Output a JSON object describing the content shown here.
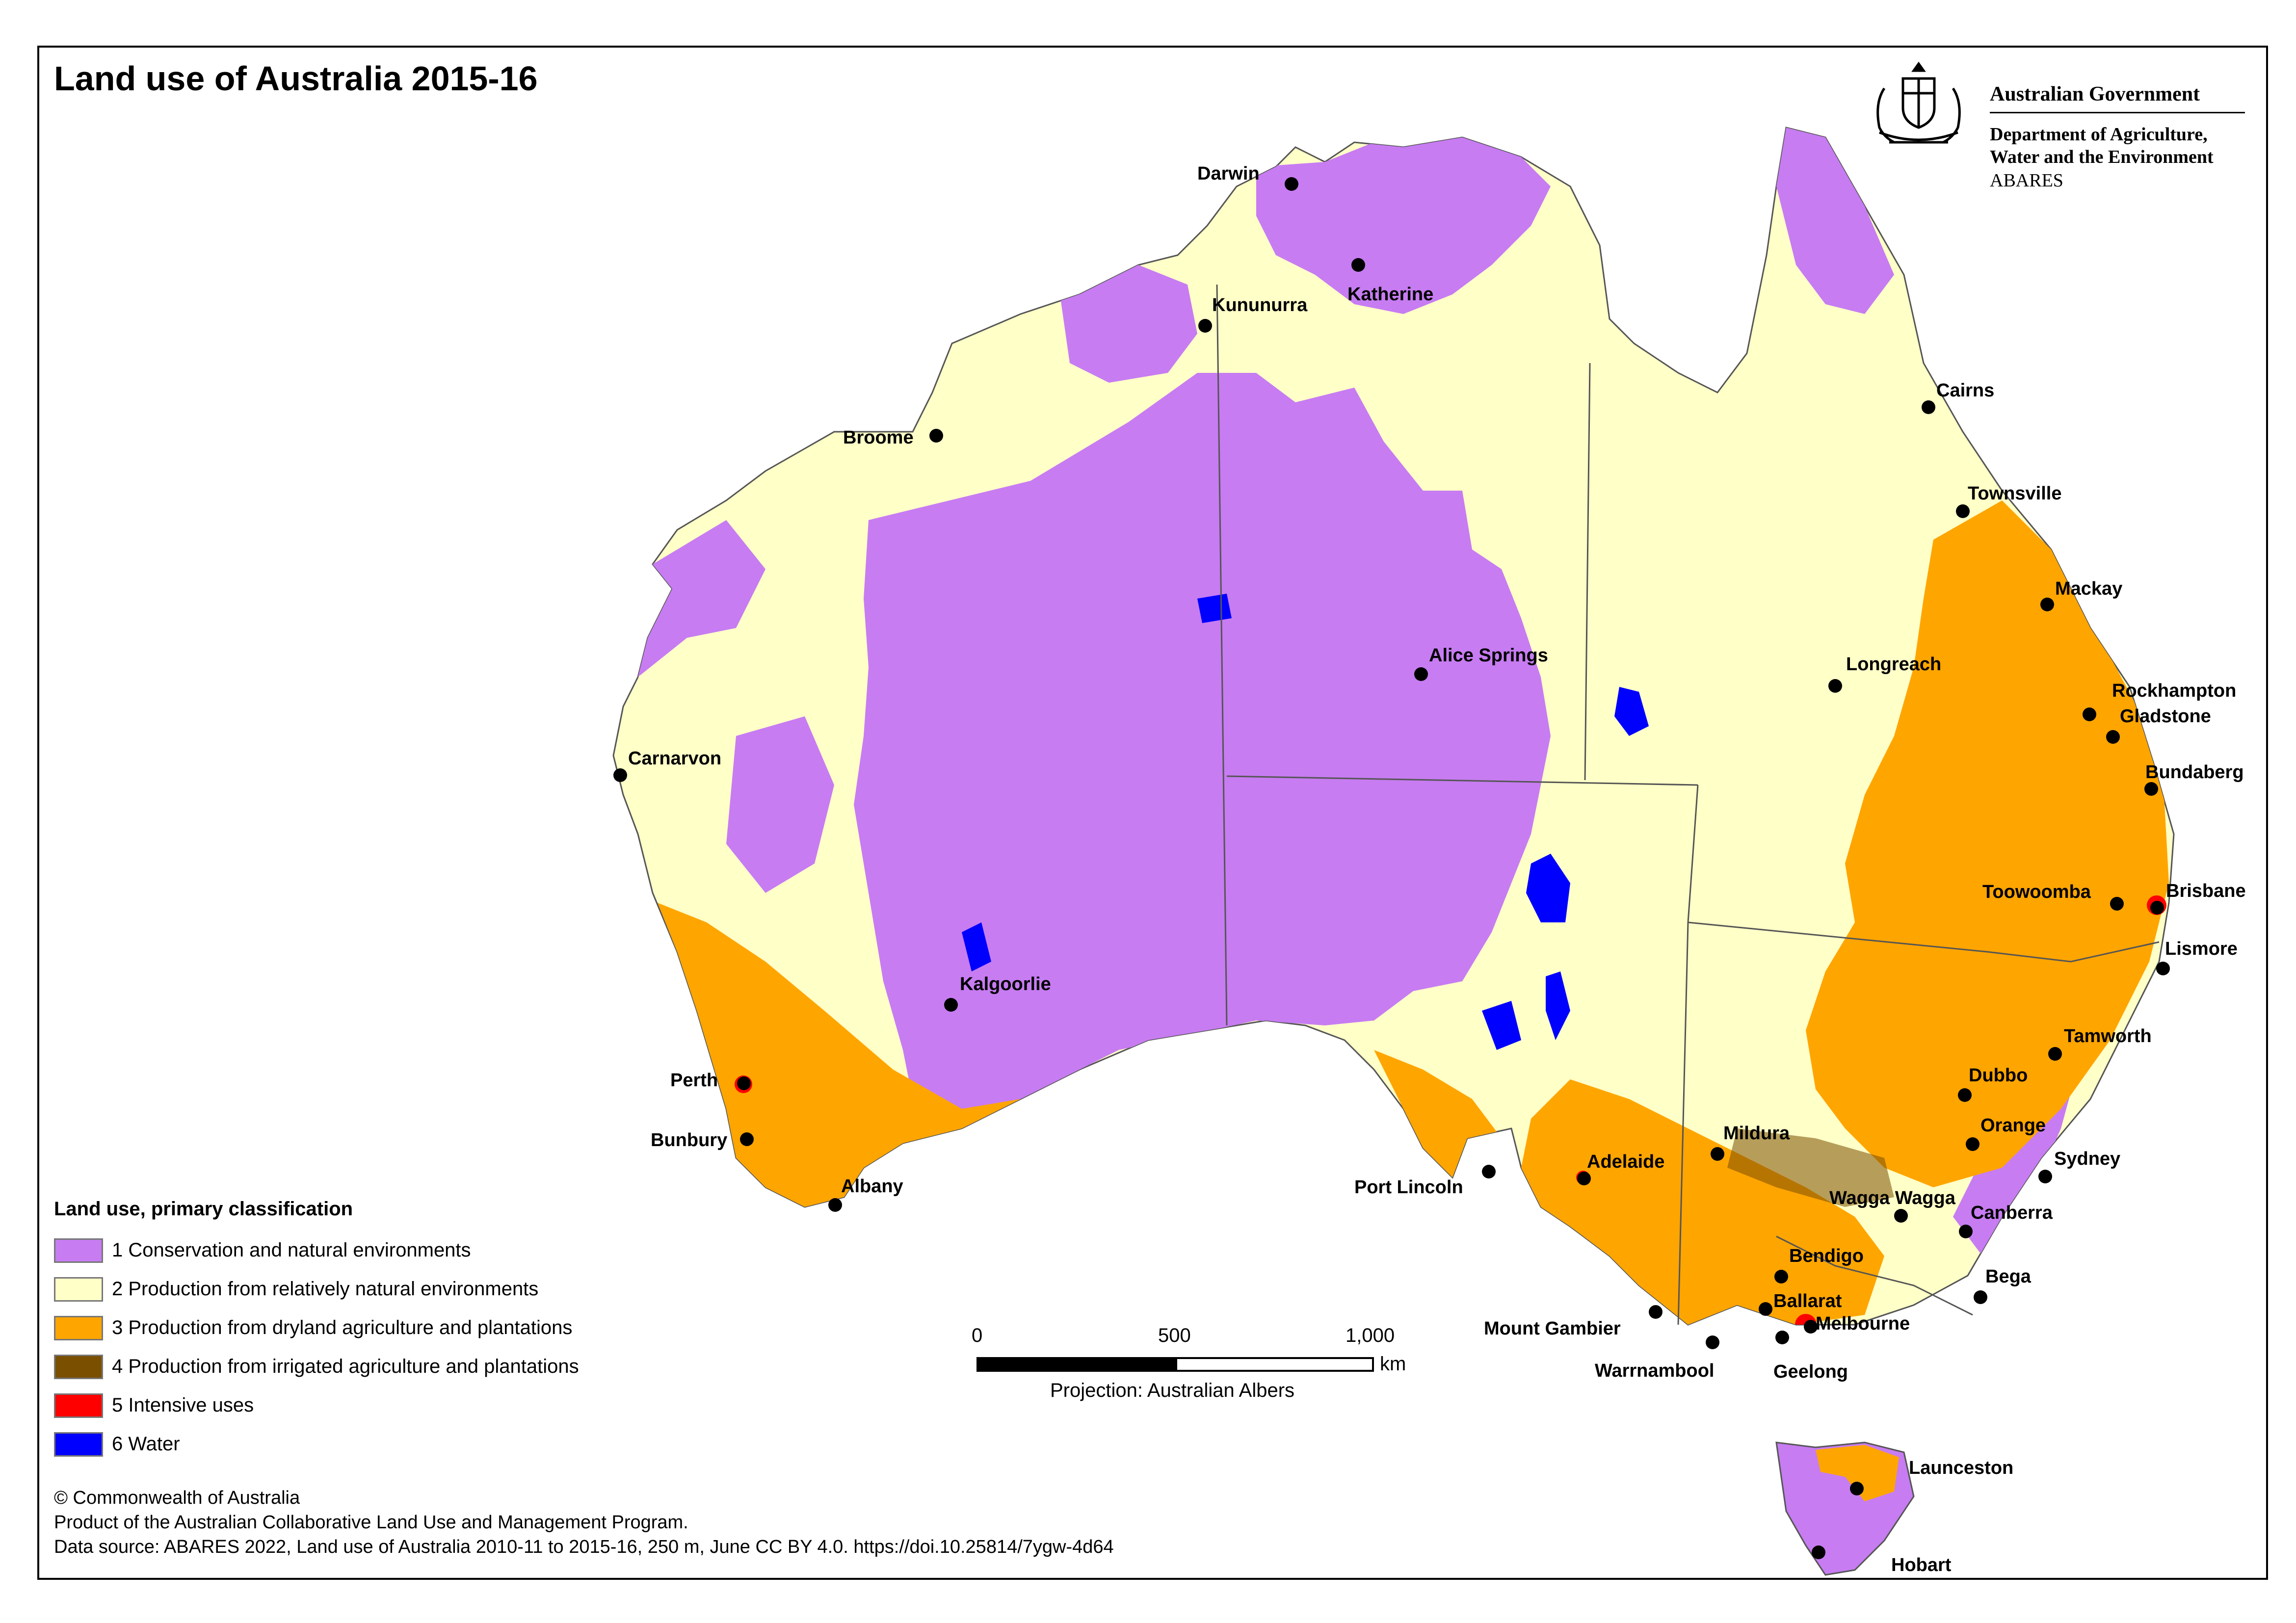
{
  "title": "Land use of Australia 2015-16",
  "agency": {
    "government": "Australian Government",
    "department_line1": "Department of Agriculture,",
    "department_line2": "Water and the Environment",
    "unit": "ABARES"
  },
  "legend": {
    "title": "Land use, primary classification",
    "items": [
      {
        "label": "1 Conservation and natural environments",
        "color": "#c77cf2"
      },
      {
        "label": "2 Production from relatively natural environments",
        "color": "#ffffc8"
      },
      {
        "label": "3 Production from dryland agriculture and plantations",
        "color": "#ffa500"
      },
      {
        "label": "4 Production from irrigated agriculture and plantations",
        "color": "#7a4f00"
      },
      {
        "label": "5 Intensive uses",
        "color": "#ff0000"
      },
      {
        "label": "6 Water",
        "color": "#0000ff"
      }
    ]
  },
  "scale_bar": {
    "ticks": [
      "0",
      "500",
      "1,000"
    ],
    "unit": "km",
    "projection": "Projection: Australian Albers"
  },
  "credits": {
    "copyright": "© Commonwealth of Australia",
    "program": "Product of the Australian Collaborative Land Use and Management Program.",
    "source": "Data source: ABARES 2022, Land use of Australia 2010-11 to 2015-16, 250 m, June CC BY 4.0. https://doi.10.25814/7ygw-4d64"
  },
  "cities": {
    "darwin": "Darwin",
    "katherine": "Katherine",
    "kununurra": "Kununurra",
    "broome": "Broome",
    "cairns": "Cairns",
    "townsville": "Townsville",
    "mackay": "Mackay",
    "alice_springs": "Alice Springs",
    "longreach": "Longreach",
    "rockhampton": "Rockhampton",
    "gladstone": "Gladstone",
    "bundaberg": "Bundaberg",
    "carnarvon": "Carnarvon",
    "toowoomba": "Toowoomba",
    "brisbane": "Brisbane",
    "lismore": "Lismore",
    "kalgoorlie": "Kalgoorlie",
    "tamworth": "Tamworth",
    "dubbo": "Dubbo",
    "perth": "Perth",
    "orange": "Orange",
    "bunbury": "Bunbury",
    "mildura": "Mildura",
    "sydney": "Sydney",
    "albany": "Albany",
    "port_lincoln": "Port Lincoln",
    "adelaide": "Adelaide",
    "wagga_wagga": "Wagga Wagga",
    "canberra": "Canberra",
    "bendigo": "Bendigo",
    "bega": "Bega",
    "ballarat": "Ballarat",
    "mount_gambier": "Mount Gambier",
    "melbourne": "Melbourne",
    "warrnambool": "Warrnambool",
    "geelong": "Geelong",
    "launceston": "Launceston",
    "hobart": "Hobart"
  }
}
